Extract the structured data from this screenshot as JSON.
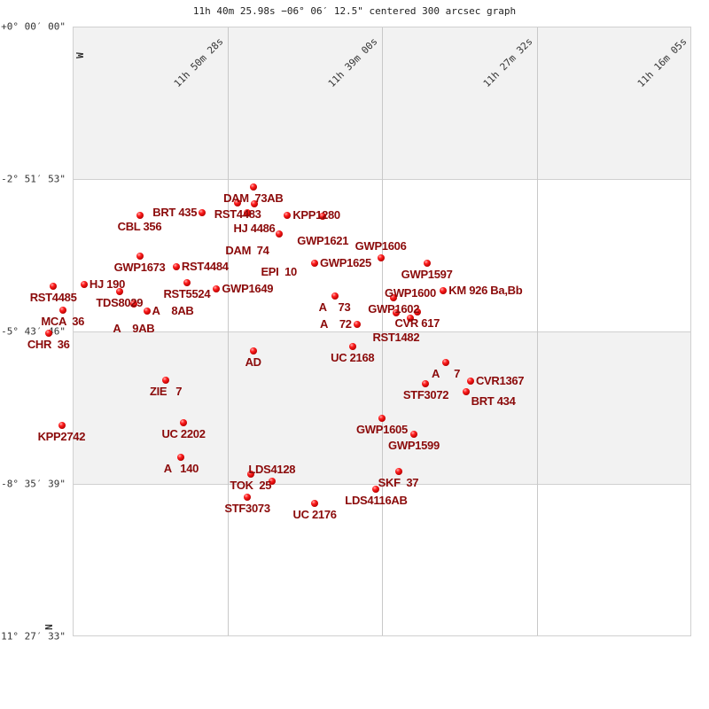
{
  "chart_data": {
    "type": "scatter",
    "title": "11h 40m 25.98s −06° 06′ 12.5\" centered 300 arcsec graph",
    "x_axis": {
      "quantity": "right ascension (hours)",
      "reversed": true,
      "range": [
        11.8413,
        11.2681
      ],
      "ticks": [
        {
          "value": 11.8411,
          "label": "11h 50m 28s"
        },
        {
          "value": 11.65,
          "label": "11h 39m 00s"
        },
        {
          "value": 11.4589,
          "label": "11h 27m 32s"
        },
        {
          "value": 11.2681,
          "label": "11h 16m 05s"
        }
      ]
    },
    "y_axis": {
      "quantity": "declination (degrees)",
      "range": [
        0,
        -11.4592
      ],
      "ticks": [
        {
          "value": 0,
          "label": "+0° 00′ 00\""
        },
        {
          "value": -2.8647,
          "label": "-2° 51′ 53\""
        },
        {
          "value": -5.7294,
          "label": "-5° 43′ 46\""
        },
        {
          "value": -8.5942,
          "label": "-8° 35′ 39\""
        },
        {
          "value": -11.4592,
          "label": "-11° 27′ 33\""
        }
      ]
    },
    "compass": {
      "west": "W",
      "north": "N"
    },
    "grid": true,
    "colors": {
      "star": "#e00000",
      "label": "#8b0a0a",
      "band": "#f2f2f2"
    },
    "stars": [
      {
        "name": "DAM  73AB",
        "ra": 11.6741,
        "dec": -3.015
      },
      {
        "name": "RST4483",
        "ra": 11.6883,
        "dec": -3.314
      },
      {
        "name": "HJ 4486",
        "ra": 11.673,
        "dec": -3.331
      },
      {
        "name": "DAM  74",
        "ra": 11.6796,
        "dec": -3.498
      },
      {
        "name": "BRT 435",
        "ra": 11.7212,
        "dec": -3.498
      },
      {
        "name": "CBL 356",
        "ra": 11.7792,
        "dec": -3.548
      },
      {
        "name": "KPP1280",
        "ra": 11.6423,
        "dec": -3.548
      },
      {
        "name": "GWP1621",
        "ra": 11.6095,
        "dec": -3.564
      },
      {
        "name": "EPI  10",
        "ra": 11.65,
        "dec": -3.897
      },
      {
        "name": "GWP1673",
        "ra": 11.7792,
        "dec": -4.314
      },
      {
        "name": "RST4484",
        "ra": 11.7453,
        "dec": -4.514
      },
      {
        "name": "RST5524",
        "ra": 11.7354,
        "dec": -4.813
      },
      {
        "name": "GWP1649",
        "ra": 11.708,
        "dec": -4.93
      },
      {
        "name": "GWP1625",
        "ra": 11.6171,
        "dec": -4.447
      },
      {
        "name": "GWP1606",
        "ra": 11.5558,
        "dec": -4.347
      },
      {
        "name": "GWP1597",
        "ra": 11.5131,
        "dec": -4.447
      },
      {
        "name": "RST4485",
        "ra": 11.8592,
        "dec": -4.88
      },
      {
        "name": "HJ 190",
        "ra": 11.8307,
        "dec": -4.847
      },
      {
        "name": "TDS8029",
        "ra": 11.7979,
        "dec": -4.98
      },
      {
        "name": "MCA  36",
        "ra": 11.8504,
        "dec": -5.33
      },
      {
        "name": "A    9AB",
        "ra": 11.7847,
        "dec": -5.213
      },
      {
        "name": "A    8AB",
        "ra": 11.7727,
        "dec": -5.346
      },
      {
        "name": "CHR  36",
        "ra": 11.8636,
        "dec": -5.763
      },
      {
        "name": "A    73",
        "ra": 11.5985,
        "dec": -5.063
      },
      {
        "name": "GWP1602",
        "ra": 11.5438,
        "dec": -5.096
      },
      {
        "name": "KM 926 Ba,Bb",
        "ra": 11.4978,
        "dec": -4.963
      },
      {
        "name": "CVR 617",
        "ra": 11.5219,
        "dec": -5.363
      },
      {
        "name": "RST1482",
        "ra": 11.5416,
        "dec": -5.38
      },
      {
        "name": "GWP1600",
        "ra": 11.5284,
        "dec": -5.479
      },
      {
        "name": "A    72",
        "ra": 11.5777,
        "dec": -5.596
      },
      {
        "name": "UC 2168",
        "ra": 11.5821,
        "dec": -6.012
      },
      {
        "name": "AD",
        "ra": 11.6741,
        "dec": -6.096
      },
      {
        "name": "ZIE   7",
        "ra": 11.7551,
        "dec": -6.645
      },
      {
        "name": "UC 2202",
        "ra": 11.7387,
        "dec": -7.445
      },
      {
        "name": "KPP2742",
        "ra": 11.8515,
        "dec": -7.495
      },
      {
        "name": "A   140",
        "ra": 11.7409,
        "dec": -8.094
      },
      {
        "name": "GWP1605",
        "ra": 11.5547,
        "dec": -7.362
      },
      {
        "name": "GWP1599",
        "ra": 11.5251,
        "dec": -7.661
      },
      {
        "name": "A     7",
        "ra": 11.4956,
        "dec": -6.312
      },
      {
        "name": "STF3072",
        "ra": 11.5142,
        "dec": -6.712
      },
      {
        "name": "CVR1367",
        "ra": 11.4726,
        "dec": -6.662
      },
      {
        "name": "BRT 434",
        "ra": 11.477,
        "dec": -6.862
      },
      {
        "name": "TOK  25",
        "ra": 11.6763,
        "dec": -8.411
      },
      {
        "name": "LDS4128",
        "ra": 11.6566,
        "dec": -8.544
      },
      {
        "name": "STF3073",
        "ra": 11.6796,
        "dec": -8.844
      },
      {
        "name": "UC 2176",
        "ra": 11.6171,
        "dec": -8.96
      },
      {
        "name": "SKF  37",
        "ra": 11.5394,
        "dec": -8.361
      },
      {
        "name": "LDS4116AB",
        "ra": 11.5602,
        "dec": -8.694
      }
    ]
  }
}
